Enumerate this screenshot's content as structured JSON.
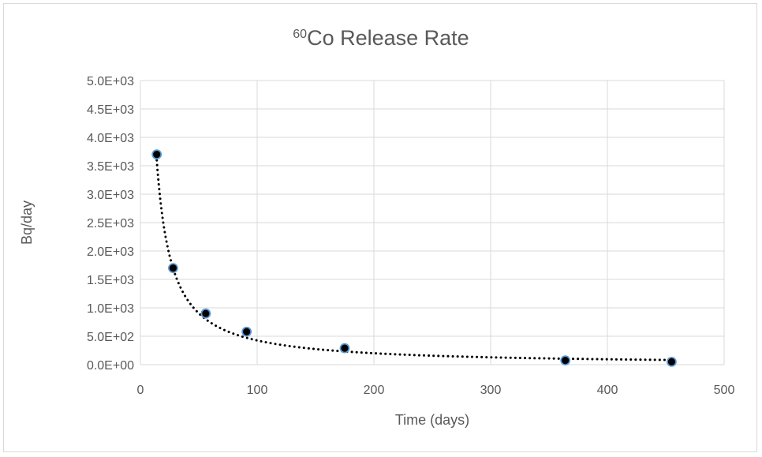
{
  "chart_data": {
    "type": "scatter",
    "title_superscript": "60",
    "title_main": "Co Release Rate",
    "xlabel": "Time (days)",
    "ylabel": "Bq/day",
    "xlim": [
      0,
      500
    ],
    "ylim": [
      0,
      5000
    ],
    "x_ticks": [
      0,
      100,
      200,
      300,
      400,
      500
    ],
    "x_tick_labels": [
      "0",
      "100",
      "200",
      "300",
      "400",
      "500"
    ],
    "y_ticks": [
      0,
      500,
      1000,
      1500,
      2000,
      2500,
      3000,
      3500,
      4000,
      4500,
      5000
    ],
    "y_tick_labels": [
      "0.0E+00",
      "5.0E+02",
      "1.0E+03",
      "1.5E+03",
      "2.0E+03",
      "2.5E+03",
      "3.0E+03",
      "3.5E+03",
      "4.0E+03",
      "4.5E+03",
      "5.0E+03"
    ],
    "grid": true,
    "legend": "none",
    "series": [
      {
        "x": [
          14,
          28,
          56,
          91,
          175,
          364,
          455
        ],
        "y": [
          3700,
          1700,
          900,
          580,
          290,
          75,
          50
        ],
        "marker_fill": "#000000",
        "marker_edge": "#5b9bd5"
      }
    ],
    "trendline": {
      "style": "dotted",
      "color": "#000000",
      "x_range": [
        14,
        455
      ],
      "coefficient": 63000,
      "exponent": -1.085
    },
    "colors": {
      "grid": "#d9d9d9",
      "text": "#595959",
      "frame": "#d9d9d9"
    }
  }
}
